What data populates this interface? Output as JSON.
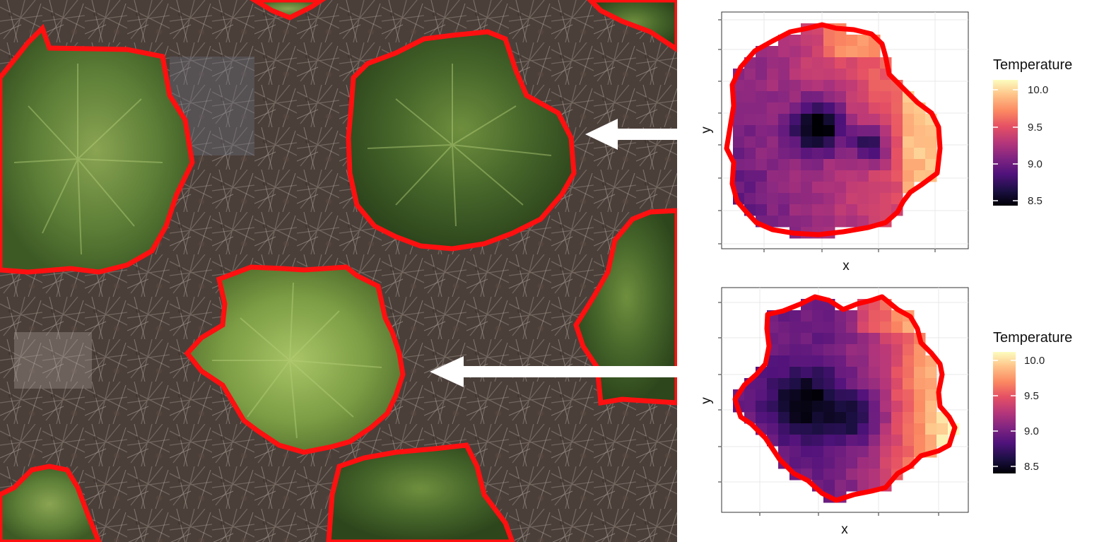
{
  "photo": {
    "description_colors": {
      "ground": "#4a3d38",
      "twig": "#b8aea2",
      "crown_dark": "#3f5f26",
      "crown_mid": "#5c7d35",
      "crown_light": "#8aa84f",
      "outline": "#ff0000"
    },
    "arrows": [
      "arrow-top",
      "arrow-bottom"
    ]
  },
  "plots": [
    {
      "x_label": "x",
      "y_label": "y",
      "legend": {
        "title": "Temperature",
        "ticks": [
          "10.0",
          "9.5",
          "9.0",
          "8.5"
        ],
        "range": [
          8.5,
          10.2
        ]
      },
      "outline_color": "#ff0000"
    },
    {
      "x_label": "x",
      "y_label": "y",
      "legend": {
        "title": "Temperature",
        "ticks": [
          "10.0",
          "9.5",
          "9.0",
          "8.5"
        ],
        "range": [
          8.45,
          10.2
        ]
      },
      "outline_color": "#ff0000"
    }
  ],
  "colormap": [
    "#000004",
    "#1c1044",
    "#4f127b",
    "#812581",
    "#b5367a",
    "#e55064",
    "#fb8761",
    "#fec287",
    "#fcfdbf"
  ]
}
